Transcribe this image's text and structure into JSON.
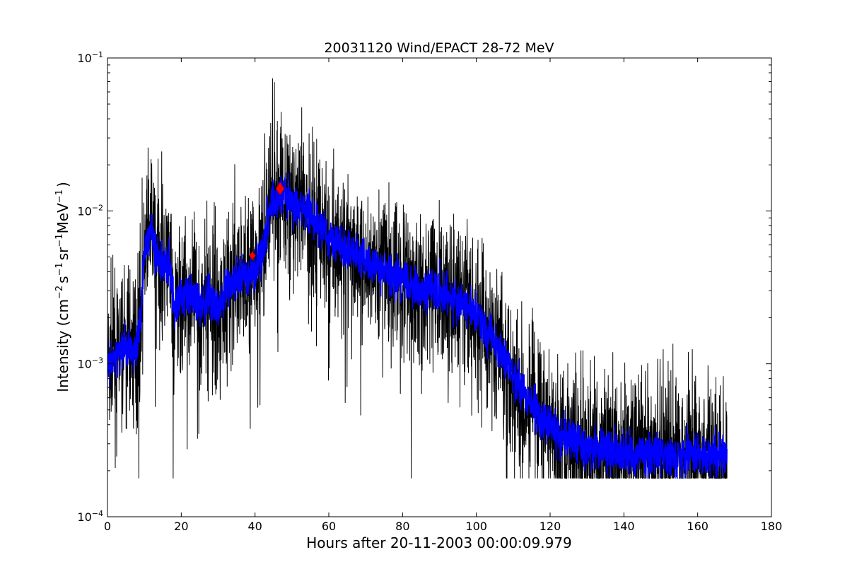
{
  "chart_data": {
    "type": "line",
    "title": "20031120 Wind/EPACT 28-72 MeV",
    "xlabel": "Hours after 20-11-2003 00:00:09.979",
    "ylabel": {
      "prefix": "Intensity (cm",
      "sup1": "−2",
      "mid1": "s",
      "sup2": "−1",
      "mid2": "sr",
      "sup3": "−1",
      "mid3": "MeV",
      "sup4": "−1",
      "suffix": ")"
    },
    "xlim": [
      0,
      180
    ],
    "ylim": [
      0.0001,
      0.1
    ],
    "yscale": "log",
    "grid": false,
    "x_ticks": [
      0,
      20,
      40,
      60,
      80,
      100,
      120,
      140,
      160,
      180
    ],
    "x_tick_labels": [
      "0",
      "20",
      "40",
      "60",
      "80",
      "100",
      "120",
      "140",
      "160",
      "180"
    ],
    "y_ticks": [
      {
        "value": 0.1,
        "base": "10",
        "exp": "−1"
      },
      {
        "value": 0.01,
        "base": "10",
        "exp": "−2"
      },
      {
        "value": 0.001,
        "base": "10",
        "exp": "−3"
      },
      {
        "value": 0.0001,
        "base": "10",
        "exp": "−4"
      }
    ],
    "series": [
      {
        "role": "raw",
        "color": "#000000",
        "spread": 0.26,
        "x": [
          0,
          2,
          4,
          6,
          8,
          9,
          10,
          11,
          12,
          13,
          14,
          16,
          17,
          18,
          20,
          22,
          24,
          26,
          28,
          30,
          32,
          34,
          36,
          38,
          40,
          42,
          44,
          46,
          47,
          48,
          50,
          52,
          54,
          56,
          58,
          60,
          62,
          64,
          66,
          68,
          70,
          72,
          74,
          76,
          78,
          80,
          82,
          84,
          86,
          88,
          90,
          92,
          94,
          96,
          98,
          100,
          102,
          104,
          106,
          108,
          110,
          112,
          114,
          116,
          118,
          120,
          122,
          124,
          126,
          128,
          130,
          135,
          140,
          145,
          150,
          155,
          160,
          165,
          168
        ],
        "y": [
          0.0009,
          0.0011,
          0.0012,
          0.0013,
          0.0013,
          0.0022,
          0.0055,
          0.0068,
          0.0075,
          0.0055,
          0.0048,
          0.0043,
          0.0045,
          0.0022,
          0.0028,
          0.0028,
          0.0026,
          0.0025,
          0.0027,
          0.0022,
          0.0031,
          0.0034,
          0.0036,
          0.0038,
          0.0043,
          0.0055,
          0.0105,
          0.0125,
          0.0135,
          0.0125,
          0.0115,
          0.0105,
          0.0098,
          0.0088,
          0.0078,
          0.0068,
          0.0063,
          0.0058,
          0.0055,
          0.0052,
          0.0047,
          0.0045,
          0.0042,
          0.0039,
          0.0036,
          0.0035,
          0.0033,
          0.0031,
          0.003,
          0.0032,
          0.003,
          0.0028,
          0.0026,
          0.0025,
          0.0023,
          0.0021,
          0.0018,
          0.0015,
          0.0013,
          0.0011,
          0.00085,
          0.0007,
          0.00058,
          0.0005,
          0.00044,
          0.0004,
          0.00036,
          0.00034,
          0.00032,
          0.0003,
          0.00028,
          0.00027,
          0.00026,
          0.00026,
          0.00025,
          0.00025,
          0.00025,
          0.00025,
          0.00025
        ]
      },
      {
        "role": "smoothed",
        "color": "#0000ff",
        "spread": 0.07,
        "x": [
          0,
          2,
          4,
          6,
          8,
          9,
          10,
          11,
          12,
          13,
          14,
          16,
          17,
          18,
          20,
          22,
          24,
          26,
          28,
          30,
          32,
          34,
          36,
          38,
          40,
          42,
          44,
          46,
          47,
          48,
          50,
          52,
          54,
          56,
          58,
          60,
          62,
          64,
          66,
          68,
          70,
          72,
          74,
          76,
          78,
          80,
          82,
          84,
          86,
          88,
          90,
          92,
          94,
          96,
          98,
          100,
          102,
          104,
          106,
          108,
          110,
          112,
          114,
          116,
          118,
          120,
          122,
          124,
          126,
          128,
          130,
          135,
          140,
          145,
          150,
          155,
          160,
          165,
          168
        ],
        "y": [
          0.0009,
          0.0011,
          0.0012,
          0.0013,
          0.0013,
          0.0022,
          0.0055,
          0.0068,
          0.0075,
          0.0055,
          0.0048,
          0.0043,
          0.0045,
          0.0022,
          0.0028,
          0.0028,
          0.0026,
          0.0025,
          0.0027,
          0.0022,
          0.0031,
          0.0034,
          0.0036,
          0.0038,
          0.0043,
          0.0055,
          0.0105,
          0.0125,
          0.0135,
          0.0125,
          0.0115,
          0.0105,
          0.0098,
          0.0088,
          0.0078,
          0.0068,
          0.0063,
          0.0058,
          0.0055,
          0.0052,
          0.0047,
          0.0045,
          0.0042,
          0.0039,
          0.0036,
          0.0035,
          0.0033,
          0.0031,
          0.003,
          0.0032,
          0.003,
          0.0028,
          0.0026,
          0.0025,
          0.0023,
          0.0021,
          0.0018,
          0.0015,
          0.0013,
          0.0011,
          0.00085,
          0.0007,
          0.00058,
          0.0005,
          0.00044,
          0.0004,
          0.00036,
          0.00034,
          0.00032,
          0.0003,
          0.00028,
          0.00027,
          0.00026,
          0.00026,
          0.00025,
          0.00025,
          0.00025,
          0.00025,
          0.00025
        ]
      }
    ],
    "markers": [
      {
        "x": 39.3,
        "y": 0.0051,
        "color": "#ff0000",
        "shape": "diamond",
        "size": "small"
      },
      {
        "x": 46.8,
        "y": 0.014,
        "color": "#ff0000",
        "shape": "diamond",
        "size": "large"
      }
    ]
  }
}
